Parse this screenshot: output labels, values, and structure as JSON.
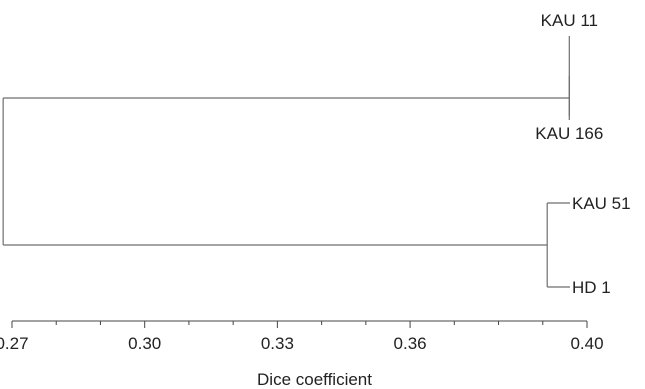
{
  "dendrogram": {
    "leaves": [
      {
        "id": "KAU 11",
        "label": "KAU 11"
      },
      {
        "id": "KAU 166",
        "label": "KAU 166"
      },
      {
        "id": "KAU 51",
        "label": "KAU 51"
      },
      {
        "id": "HD 1",
        "label": "HD 1"
      }
    ],
    "merges": [
      {
        "children": [
          "KAU 11",
          "KAU 166"
        ],
        "height": 0.396
      },
      {
        "children": [
          "KAU 51",
          "HD 1"
        ],
        "height": 0.391
      },
      {
        "children": [
          0,
          1
        ],
        "height": 0.268
      }
    ],
    "axis": {
      "title": "Dice coefficient",
      "range": [
        0.27,
        0.4
      ],
      "major_ticks": [
        "0.27",
        "0.30",
        "0.33",
        "0.36",
        "0.40"
      ],
      "minor_step": 0.01
    }
  },
  "colors": {
    "branch": "#6e6e6e",
    "text": "#222222"
  }
}
